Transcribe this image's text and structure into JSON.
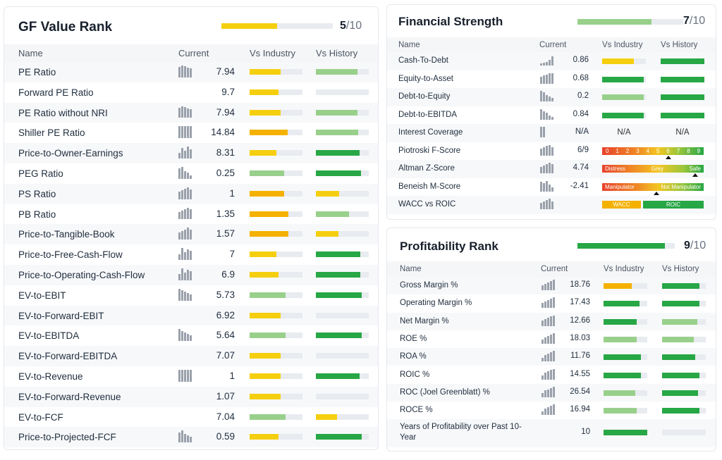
{
  "colors": {
    "yellow": "#f5cf0f",
    "orange": "#f4b100",
    "lightgreen": "#98d08b",
    "green": "#27a745",
    "track": "#e8ebf0"
  },
  "gf": {
    "title": "GF Value Rank",
    "score": "5",
    "max": "/10",
    "fill": 0.5,
    "headers": {
      "name": "Name",
      "current": "Current",
      "industry": "Vs Industry",
      "history": "Vs History"
    },
    "rows": [
      {
        "name": "PE Ratio",
        "value": "7.94",
        "spark": [
          14,
          16,
          15,
          13,
          12
        ],
        "ind": {
          "f": 0.58,
          "c": "yellow"
        },
        "his": {
          "f": 0.78,
          "c": "lightgreen"
        }
      },
      {
        "name": "Forward PE Ratio",
        "value": "9.7",
        "spark": [],
        "ind": {
          "f": 0.55,
          "c": "yellow"
        },
        "his": {
          "f": 0,
          "c": "lightgreen"
        }
      },
      {
        "name": "PE Ratio without NRI",
        "value": "7.94",
        "spark": [
          14,
          16,
          15,
          13,
          12
        ],
        "ind": {
          "f": 0.58,
          "c": "yellow"
        },
        "his": {
          "f": 0.78,
          "c": "lightgreen"
        }
      },
      {
        "name": "Shiller PE Ratio",
        "value": "14.84",
        "spark": [
          16,
          16,
          16,
          16,
          16
        ],
        "ind": {
          "f": 0.72,
          "c": "orange"
        },
        "his": {
          "f": 0.8,
          "c": "lightgreen"
        }
      },
      {
        "name": "Price-to-Owner-Earnings",
        "value": "8.31",
        "spark": [
          8,
          14,
          10,
          16,
          12
        ],
        "ind": {
          "f": 0.5,
          "c": "yellow"
        },
        "his": {
          "f": 0.82,
          "c": "green"
        }
      },
      {
        "name": "PEG Ratio",
        "value": "0.25",
        "spark": [
          14,
          16,
          10,
          8,
          5
        ],
        "ind": {
          "f": 0.65,
          "c": "lightgreen"
        },
        "his": {
          "f": 0.85,
          "c": "green"
        }
      },
      {
        "name": "PS Ratio",
        "value": "1",
        "spark": [
          10,
          12,
          14,
          16,
          13
        ],
        "ind": {
          "f": 0.65,
          "c": "orange"
        },
        "his": {
          "f": 0.44,
          "c": "yellow"
        }
      },
      {
        "name": "PB Ratio",
        "value": "1.35",
        "spark": [
          10,
          12,
          14,
          16,
          14
        ],
        "ind": {
          "f": 0.73,
          "c": "orange"
        },
        "his": {
          "f": 0.63,
          "c": "lightgreen"
        }
      },
      {
        "name": "Price-to-Tangible-Book",
        "value": "1.57",
        "spark": [
          10,
          12,
          14,
          16,
          14
        ],
        "ind": {
          "f": 0.73,
          "c": "orange"
        },
        "his": {
          "f": 0.42,
          "c": "yellow"
        }
      },
      {
        "name": "Price-to-Free-Cash-Flow",
        "value": "7",
        "spark": [
          8,
          16,
          10,
          14,
          12
        ],
        "ind": {
          "f": 0.5,
          "c": "yellow"
        },
        "his": {
          "f": 0.84,
          "c": "green"
        }
      },
      {
        "name": "Price-to-Operating-Cash-Flow",
        "value": "6.9",
        "spark": [
          8,
          16,
          10,
          14,
          12
        ],
        "ind": {
          "f": 0.55,
          "c": "yellow"
        },
        "his": {
          "f": 0.84,
          "c": "green"
        }
      },
      {
        "name": "EV-to-EBIT",
        "value": "5.73",
        "spark": [
          16,
          14,
          12,
          10,
          8
        ],
        "ind": {
          "f": 0.68,
          "c": "lightgreen"
        },
        "his": {
          "f": 0.86,
          "c": "green"
        }
      },
      {
        "name": "EV-to-Forward-EBIT",
        "value": "6.92",
        "spark": [],
        "ind": {
          "f": 0.58,
          "c": "yellow"
        },
        "his": {
          "f": 0,
          "c": "lightgreen"
        }
      },
      {
        "name": "EV-to-EBITDA",
        "value": "5.64",
        "spark": [
          16,
          14,
          12,
          10,
          8
        ],
        "ind": {
          "f": 0.68,
          "c": "lightgreen"
        },
        "his": {
          "f": 0.86,
          "c": "green"
        }
      },
      {
        "name": "EV-to-Forward-EBITDA",
        "value": "7.07",
        "spark": [],
        "ind": {
          "f": 0.58,
          "c": "yellow"
        },
        "his": {
          "f": 0,
          "c": "lightgreen"
        }
      },
      {
        "name": "EV-to-Revenue",
        "value": "1",
        "spark": [
          16,
          16,
          16,
          16,
          16
        ],
        "ind": {
          "f": 0.58,
          "c": "yellow"
        },
        "his": {
          "f": 0.82,
          "c": "green"
        }
      },
      {
        "name": "EV-to-Forward-Revenue",
        "value": "1.07",
        "spark": [],
        "ind": {
          "f": 0.58,
          "c": "yellow"
        },
        "his": {
          "f": 0,
          "c": "lightgreen"
        }
      },
      {
        "name": "EV-to-FCF",
        "value": "7.04",
        "spark": [],
        "ind": {
          "f": 0.68,
          "c": "lightgreen"
        },
        "his": {
          "f": 0.4,
          "c": "yellow"
        }
      },
      {
        "name": "Price-to-Projected-FCF",
        "value": "0.59",
        "spark": [
          14,
          16,
          12,
          10,
          8
        ],
        "ind": {
          "f": 0.55,
          "c": "yellow"
        },
        "his": {
          "f": 0.86,
          "c": "green"
        }
      }
    ]
  },
  "fs": {
    "title": "Financial Strength",
    "score": "7",
    "max": "/10",
    "fill": 0.7,
    "headers": {
      "name": "Name",
      "current": "Current",
      "industry": "Vs Industry",
      "history": "Vs History"
    },
    "rows": [
      {
        "name": "Cash-To-Debt",
        "value": "0.86",
        "spark": [
          3,
          4,
          6,
          9,
          14
        ],
        "ind": {
          "f": 0.72,
          "c": "yellow"
        },
        "his": {
          "f": 1,
          "c": "green"
        }
      },
      {
        "name": "Equity-to-Asset",
        "value": "0.68",
        "spark": [
          10,
          12,
          13,
          15,
          16
        ],
        "ind": {
          "f": 0.95,
          "c": "green"
        },
        "his": {
          "f": 1,
          "c": "green"
        }
      },
      {
        "name": "Debt-to-Equity",
        "value": "0.2",
        "spark": [
          16,
          14,
          10,
          8,
          6
        ],
        "ind": {
          "f": 0.95,
          "c": "lightgreen"
        },
        "his": {
          "f": 1,
          "c": "green"
        }
      },
      {
        "name": "Debt-to-EBITDA",
        "value": "0.84",
        "spark": [
          16,
          12,
          10,
          6,
          4
        ],
        "ind": {
          "f": 0.95,
          "c": "green"
        },
        "his": {
          "f": 1,
          "c": "green"
        }
      },
      {
        "name": "Interest Coverage",
        "value": "N/A",
        "spark": [
          16,
          16
        ],
        "na": true
      },
      {
        "name": "Piotroski F-Score",
        "value": "6/9",
        "spark": [
          10,
          12,
          14,
          16,
          12
        ],
        "type": "piotroski"
      },
      {
        "name": "Altman Z-Score",
        "value": "4.74",
        "spark": [
          10,
          12,
          14,
          16,
          14
        ],
        "type": "altman",
        "labels": [
          "Distress",
          "Grey",
          "Safe"
        ]
      },
      {
        "name": "Beneish M-Score",
        "value": "-2.41",
        "spark": [
          14,
          12,
          16,
          10,
          6
        ],
        "type": "beneish",
        "labels": [
          "Manipulator",
          "Not Manipulator"
        ]
      },
      {
        "name": "WACC vs ROIC",
        "value": "",
        "spark": [
          10,
          12,
          14,
          16,
          12
        ],
        "type": "wacc",
        "labels": [
          "WACC",
          "ROIC"
        ]
      }
    ],
    "na_text": "N/A",
    "piotroski_labels": [
      "0",
      "1",
      "2",
      "3",
      "4",
      "5",
      "6",
      "7",
      "8",
      "9"
    ]
  },
  "pr": {
    "title": "Profitability Rank",
    "score": "9",
    "max": "/10",
    "fill": 0.9,
    "headers": {
      "name": "Name",
      "current": "Current",
      "industry": "Vs Industry",
      "history": "Vs History"
    },
    "rows": [
      {
        "name": "Gross Margin %",
        "value": "18.76",
        "spark": [
          8,
          10,
          12,
          14,
          16
        ],
        "ind": {
          "f": 0.65,
          "c": "orange"
        },
        "his": {
          "f": 0.85,
          "c": "green"
        }
      },
      {
        "name": "Operating Margin %",
        "value": "17.43",
        "spark": [
          8,
          10,
          12,
          14,
          16
        ],
        "ind": {
          "f": 0.82,
          "c": "green"
        },
        "his": {
          "f": 0.85,
          "c": "green"
        }
      },
      {
        "name": "Net Margin %",
        "value": "12.66",
        "spark": [
          8,
          10,
          12,
          14,
          16
        ],
        "ind": {
          "f": 0.75,
          "c": "green"
        },
        "his": {
          "f": 0.8,
          "c": "lightgreen"
        }
      },
      {
        "name": "ROE %",
        "value": "18.03",
        "spark": [
          6,
          10,
          12,
          14,
          16
        ],
        "ind": {
          "f": 0.75,
          "c": "lightgreen"
        },
        "his": {
          "f": 0.72,
          "c": "lightgreen"
        }
      },
      {
        "name": "ROA %",
        "value": "11.76",
        "spark": [
          6,
          10,
          12,
          14,
          16
        ],
        "ind": {
          "f": 0.85,
          "c": "green"
        },
        "his": {
          "f": 0.75,
          "c": "green"
        }
      },
      {
        "name": "ROIC %",
        "value": "14.55",
        "spark": [
          6,
          10,
          12,
          14,
          16
        ],
        "ind": {
          "f": 0.85,
          "c": "green"
        },
        "his": {
          "f": 0.85,
          "c": "green"
        }
      },
      {
        "name": "ROC (Joel Greenblatt) %",
        "value": "26.54",
        "spark": [
          6,
          10,
          12,
          14,
          16
        ],
        "ind": {
          "f": 0.72,
          "c": "lightgreen"
        },
        "his": {
          "f": 0.82,
          "c": "green"
        }
      },
      {
        "name": "ROCE %",
        "value": "16.94",
        "spark": [
          6,
          10,
          12,
          14,
          16
        ],
        "ind": {
          "f": 0.75,
          "c": "lightgreen"
        },
        "his": {
          "f": 0.85,
          "c": "green"
        }
      },
      {
        "name": "Years of Profitability over Past 10-Year",
        "value": "10",
        "spark": [],
        "ind": {
          "f": 1,
          "c": "green"
        },
        "his": {
          "f": 0,
          "c": "lightgreen"
        }
      }
    ]
  }
}
